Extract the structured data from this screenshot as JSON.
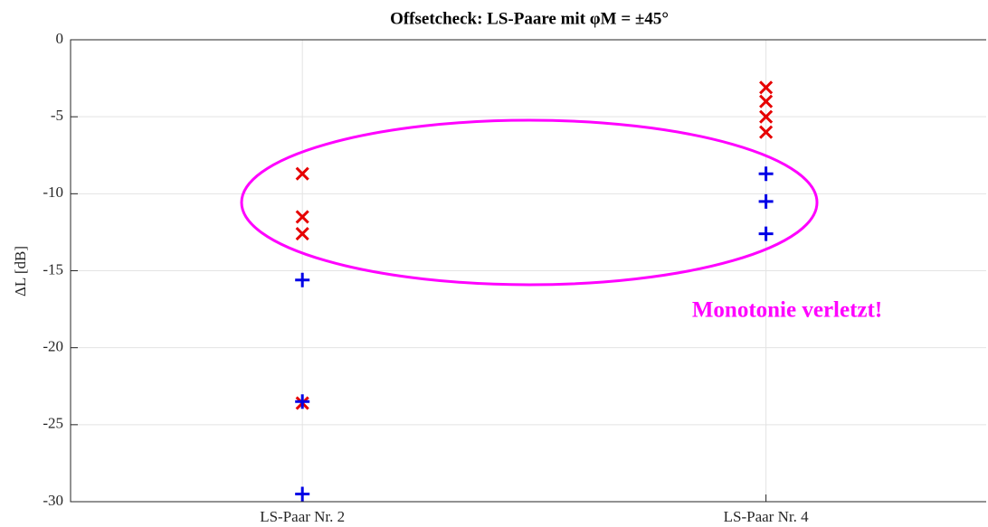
{
  "chart_data": {
    "type": "scatter",
    "title": "Offsetcheck: LS-Paare mit φM = ±45°",
    "y_label": "ΔL [dB]",
    "annotation": "Monotonie verletzt!",
    "xlim": [
      1,
      4.95
    ],
    "xticks": [
      {
        "value": 2,
        "label": "LS-Paar Nr. 2"
      },
      {
        "value": 4,
        "label": "LS-Paar Nr. 4"
      }
    ],
    "ylim": [
      -30,
      0
    ],
    "yticks": [
      0,
      -5,
      -10,
      -15,
      -20,
      -25,
      -30
    ],
    "grid": true,
    "series": [
      {
        "color": "#e60000",
        "marker": "x",
        "x": [
          2,
          2,
          2,
          2,
          4,
          4,
          4,
          4
        ],
        "values": [
          -8.7,
          -11.5,
          -12.6,
          -23.6,
          -3.1,
          -4.0,
          -5.0,
          -6.0
        ]
      },
      {
        "color": "#0000e6",
        "marker": "+",
        "x": [
          2,
          2,
          2,
          4,
          4,
          4
        ],
        "values": [
          -15.6,
          -23.5,
          -29.5,
          -8.7,
          -10.5,
          -12.6
        ]
      }
    ]
  }
}
